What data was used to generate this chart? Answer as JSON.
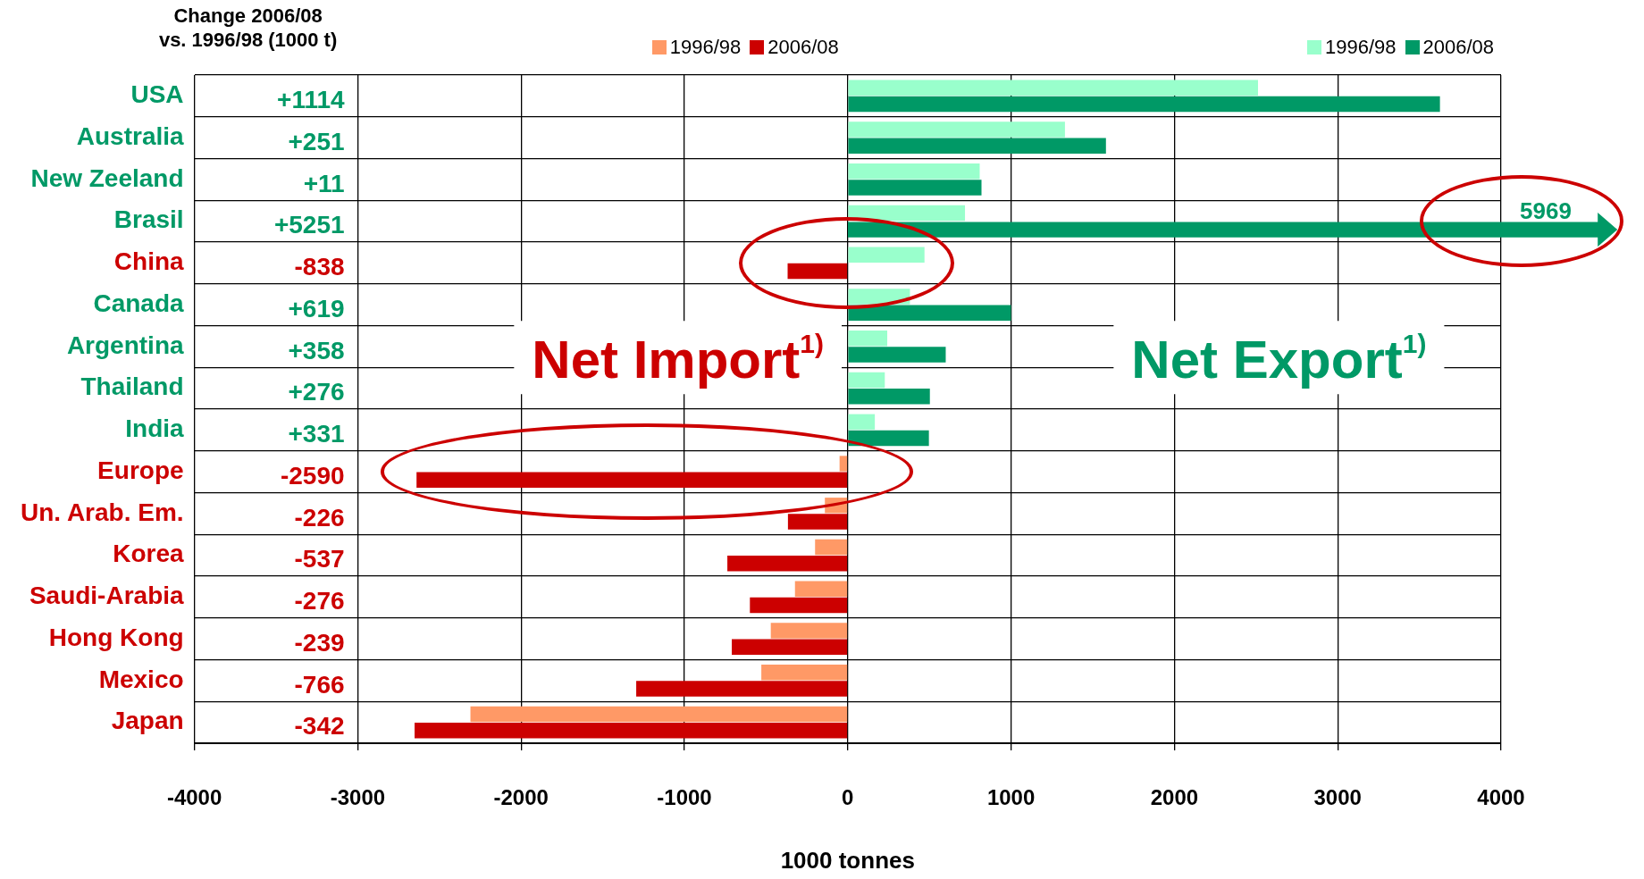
{
  "chart_data": {
    "type": "bar",
    "orientation": "horizontal",
    "xlabel": "1000 tonnes",
    "categories": [
      "USA",
      "Australia",
      "New Zeeland",
      "Brasil",
      "China",
      "Canada",
      "Argentina",
      "Thailand",
      "India",
      "Europe",
      "Un. Arab. Em.",
      "Korea",
      "Saudi-Arabia",
      "Hong Kong",
      "Mexico",
      "Japan"
    ],
    "series": [
      {
        "name": "1996/98",
        "values": [
          2512,
          1330,
          808,
          718,
          470,
          381,
          242,
          227,
          166,
          -50,
          -140,
          -200,
          -323,
          -471,
          -529,
          -2310
        ],
        "colors": [
          "#99ffcc",
          "#99ffcc",
          "#99ffcc",
          "#99ffcc",
          "#99ffcc",
          "#99ffcc",
          "#99ffcc",
          "#99ffcc",
          "#99ffcc",
          "#ff9966",
          "#ff9966",
          "#ff9966",
          "#ff9966",
          "#ff9966",
          "#ff9966",
          "#ff9966"
        ]
      },
      {
        "name": "2006/08",
        "values": [
          3626,
          1581,
          819,
          null,
          -368,
          1000,
          600,
          503,
          497,
          -2640,
          -366,
          -737,
          -599,
          -710,
          -1295,
          -2652
        ],
        "colors": [
          "#009966",
          "#009966",
          "#009966",
          "#009966",
          "#cc0000",
          "#009966",
          "#009966",
          "#009966",
          "#009966",
          "#cc0000",
          "#cc0000",
          "#cc0000",
          "#cc0000",
          "#cc0000",
          "#cc0000",
          "#cc0000"
        ]
      }
    ],
    "xlim": [
      -4000,
      4000
    ],
    "xticks": [
      -4000,
      -3000,
      -2000,
      -1000,
      0,
      1000,
      2000,
      3000,
      4000
    ],
    "grid": true,
    "legend": "top",
    "annotations": [
      "Change 2006/08\nvs. 1996/98 (1000 t)",
      "+1114",
      "+251",
      "+11",
      "+5251",
      "-838",
      "+619",
      "+358",
      "+276",
      "+331",
      "-2590",
      "-226",
      "-537",
      "-276",
      "-239",
      "-766",
      "-342",
      "5969",
      "Net Import$^{1)}$",
      "Net Export$^{1)}$"
    ]
  }
}
